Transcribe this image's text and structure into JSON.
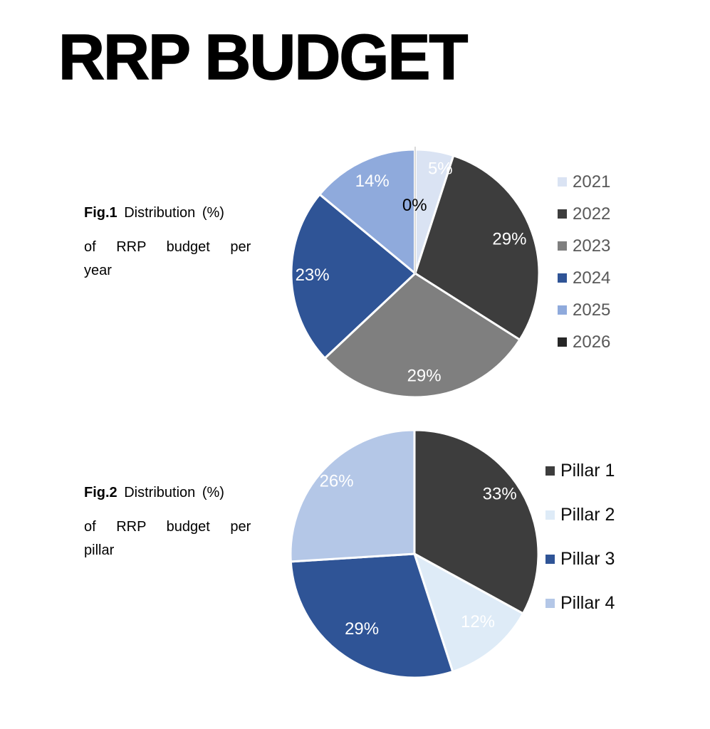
{
  "title": "RRP BUDGET",
  "fig1": {
    "tag": "Fig.1",
    "line1": "Distribution (%)",
    "line2": "of RRP budget per",
    "line3": "year"
  },
  "fig2": {
    "tag": "Fig.2",
    "line1": "Distribution (%)",
    "line2": "of RRP budget per",
    "line3": "pillar"
  },
  "chart_data": [
    {
      "type": "pie",
      "title": "Fig.1 Distribution (%) of RRP budget per year",
      "categories": [
        "2021",
        "2022",
        "2023",
        "2024",
        "2025",
        "2026"
      ],
      "values": [
        5,
        29,
        29,
        23,
        14,
        0
      ],
      "data_labels": [
        "5%",
        "29%",
        "29%",
        "23%",
        "14%",
        "0%"
      ],
      "slice_colors": [
        "#dae3f3",
        "#3d3d3d",
        "#7f7f7f",
        "#2f5496",
        "#8faadc",
        "#262626"
      ],
      "label_colors": [
        "#ffffff",
        "#ffffff",
        "#ffffff",
        "#ffffff",
        "#ffffff",
        "#000000"
      ],
      "label_radius": [
        0.87,
        0.81,
        0.83,
        0.83,
        0.82,
        0.55
      ],
      "label_angles": [
        13.5,
        70,
        175,
        269,
        335,
        359.5
      ],
      "start_angle": 0,
      "direction": "clockwise",
      "legend": {
        "position": "right",
        "text_color": "#595959",
        "font_weight": "400"
      }
    },
    {
      "type": "pie",
      "title": "Fig.2 Distribution (%) of RRP budget per pillar",
      "categories": [
        "Pillar 1",
        "Pillar 2",
        "Pillar 3",
        "Pillar 4"
      ],
      "values": [
        33,
        12,
        29,
        26
      ],
      "data_labels": [
        "33%",
        "12%",
        "29%",
        "26%"
      ],
      "slice_colors": [
        "#3d3d3d",
        "#deebf7",
        "#2f5496",
        "#b4c7e7"
      ],
      "label_colors": [
        "#ffffff",
        "#ffffff",
        "#ffffff",
        "#ffffff"
      ],
      "label_radius": [
        0.84,
        0.75,
        0.74,
        0.86
      ],
      "label_angles": [
        55,
        137,
        215,
        313
      ],
      "start_angle": 0,
      "direction": "clockwise",
      "legend": {
        "position": "right",
        "text_color": "#0d0d0d",
        "font_weight": "400"
      }
    }
  ]
}
